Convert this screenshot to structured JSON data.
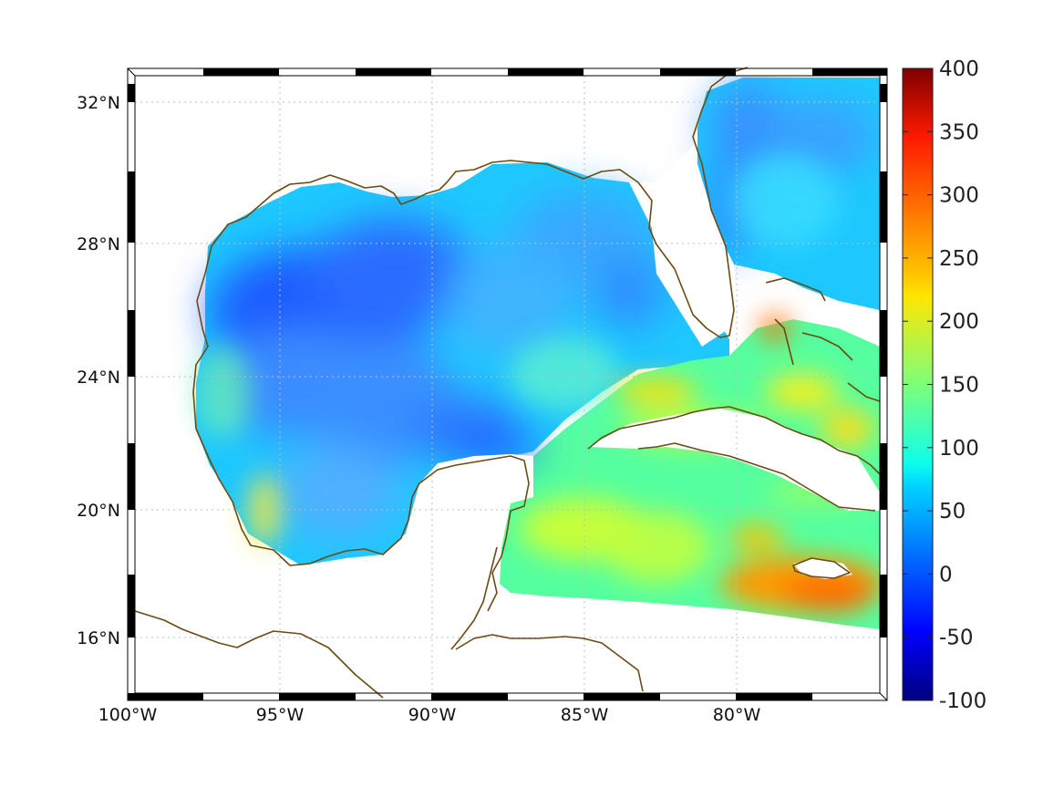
{
  "map": {
    "lon_range": [
      -100,
      -75
    ],
    "lat_range": [
      14.2,
      33
    ],
    "lon_ticks": [
      {
        "value": -100,
        "label": "100°W"
      },
      {
        "value": -95,
        "label": "95°W"
      },
      {
        "value": -90,
        "label": "90°W"
      },
      {
        "value": -85,
        "label": "85°W"
      },
      {
        "value": -80,
        "label": "80°W"
      }
    ],
    "lat_ticks": [
      {
        "value": 32,
        "label": "32°N"
      },
      {
        "value": 28,
        "label": "28°N"
      },
      {
        "value": 24,
        "label": "24°N"
      },
      {
        "value": 20,
        "label": "20°N"
      },
      {
        "value": 16,
        "label": "16°N"
      }
    ],
    "grid": true,
    "coastline_color": "#6b4a14",
    "colormap": "jet"
  },
  "colorbar": {
    "min": -100,
    "max": 400,
    "ticks": [
      {
        "value": 400,
        "label": "400"
      },
      {
        "value": 350,
        "label": "350"
      },
      {
        "value": 300,
        "label": "300"
      },
      {
        "value": 250,
        "label": "250"
      },
      {
        "value": 200,
        "label": "200"
      },
      {
        "value": 150,
        "label": "150"
      },
      {
        "value": 100,
        "label": "100"
      },
      {
        "value": 50,
        "label": "50"
      },
      {
        "value": 0,
        "label": "0"
      },
      {
        "value": -50,
        "label": "-50"
      },
      {
        "value": -100,
        "label": "-100"
      }
    ]
  }
}
